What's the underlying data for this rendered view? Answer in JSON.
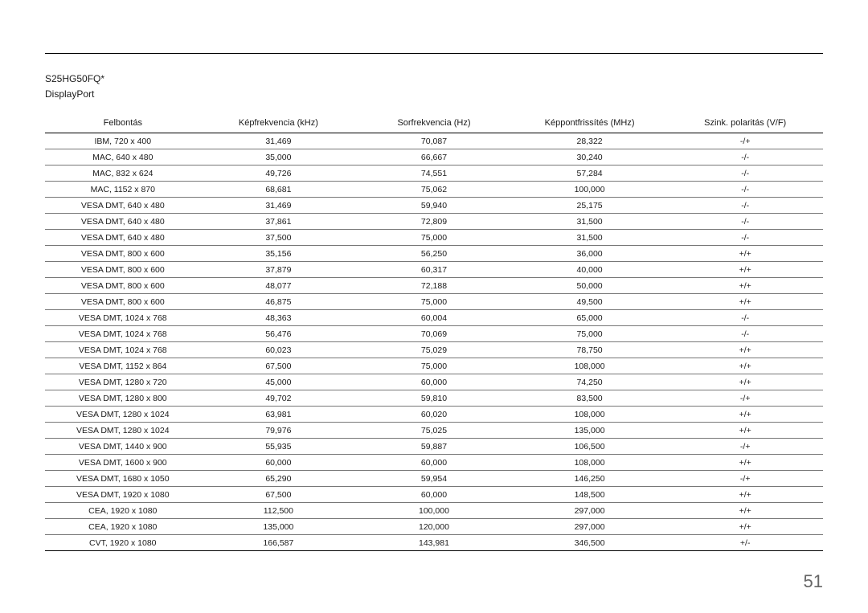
{
  "model": "S25HG50FQ*",
  "port": "DisplayPort",
  "page_number": "51",
  "table": {
    "columns": [
      "Felbontás",
      "Képfrekvencia (kHz)",
      "Sorfrekvencia (Hz)",
      "Képpontfrissítés (MHz)",
      "Szink. polaritás (V/F)"
    ],
    "rows": [
      [
        "IBM, 720 x 400",
        "31,469",
        "70,087",
        "28,322",
        "-/+"
      ],
      [
        "MAC, 640 x 480",
        "35,000",
        "66,667",
        "30,240",
        "-/-"
      ],
      [
        "MAC, 832 x 624",
        "49,726",
        "74,551",
        "57,284",
        "-/-"
      ],
      [
        "MAC, 1152 x 870",
        "68,681",
        "75,062",
        "100,000",
        "-/-"
      ],
      [
        "VESA DMT, 640 x 480",
        "31,469",
        "59,940",
        "25,175",
        "-/-"
      ],
      [
        "VESA DMT, 640 x 480",
        "37,861",
        "72,809",
        "31,500",
        "-/-"
      ],
      [
        "VESA DMT, 640 x 480",
        "37,500",
        "75,000",
        "31,500",
        "-/-"
      ],
      [
        "VESA DMT, 800 x 600",
        "35,156",
        "56,250",
        "36,000",
        "+/+"
      ],
      [
        "VESA DMT, 800 x 600",
        "37,879",
        "60,317",
        "40,000",
        "+/+"
      ],
      [
        "VESA DMT, 800 x 600",
        "48,077",
        "72,188",
        "50,000",
        "+/+"
      ],
      [
        "VESA DMT, 800 x 600",
        "46,875",
        "75,000",
        "49,500",
        "+/+"
      ],
      [
        "VESA DMT, 1024 x 768",
        "48,363",
        "60,004",
        "65,000",
        "-/-"
      ],
      [
        "VESA DMT, 1024 x 768",
        "56,476",
        "70,069",
        "75,000",
        "-/-"
      ],
      [
        "VESA DMT, 1024 x 768",
        "60,023",
        "75,029",
        "78,750",
        "+/+"
      ],
      [
        "VESA DMT, 1152 x 864",
        "67,500",
        "75,000",
        "108,000",
        "+/+"
      ],
      [
        "VESA DMT, 1280 x 720",
        "45,000",
        "60,000",
        "74,250",
        "+/+"
      ],
      [
        "VESA DMT, 1280 x 800",
        "49,702",
        "59,810",
        "83,500",
        "-/+"
      ],
      [
        "VESA  DMT, 1280 x 1024",
        "63,981",
        "60,020",
        "108,000",
        "+/+"
      ],
      [
        "VESA  DMT, 1280 x 1024",
        "79,976",
        "75,025",
        "135,000",
        "+/+"
      ],
      [
        "VESA  DMT, 1440 x 900",
        "55,935",
        "59,887",
        "106,500",
        "-/+"
      ],
      [
        "VESA  DMT, 1600 x 900",
        "60,000",
        "60,000",
        "108,000",
        "+/+"
      ],
      [
        "VESA  DMT, 1680 x 1050",
        "65,290",
        "59,954",
        "146,250",
        "-/+"
      ],
      [
        "VESA DMT, 1920 x 1080",
        "67,500",
        "60,000",
        "148,500",
        "+/+"
      ],
      [
        "CEA, 1920 x 1080",
        "112,500",
        "100,000",
        "297,000",
        "+/+"
      ],
      [
        "CEA, 1920 x 1080",
        "135,000",
        "120,000",
        "297,000",
        "+/+"
      ],
      [
        "CVT, 1920 x 1080",
        "166,587",
        "143,981",
        "346,500",
        "+/-"
      ]
    ]
  }
}
